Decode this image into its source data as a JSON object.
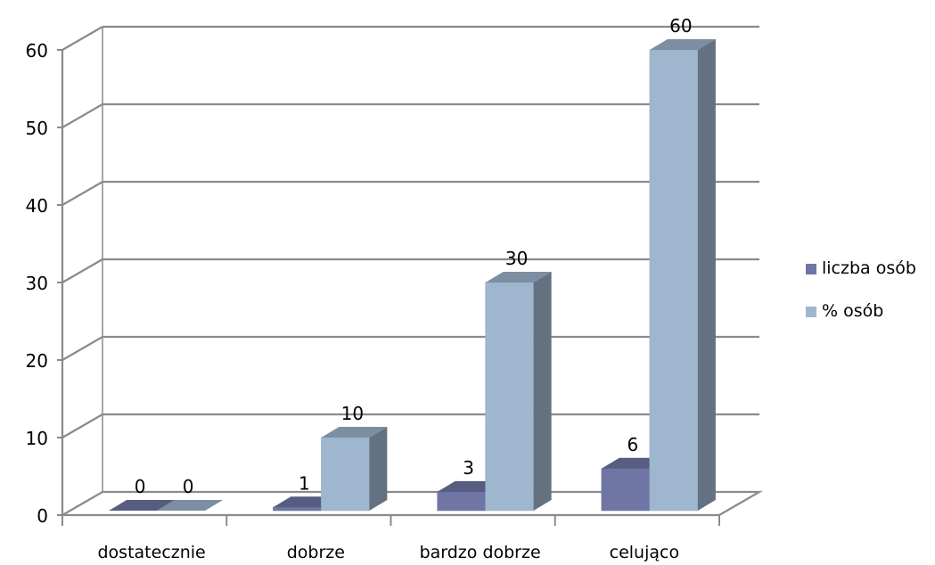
{
  "chart_data": {
    "type": "bar",
    "categories": [
      "dostatecznie",
      "dobrze",
      "bardzo dobrze",
      "celująco"
    ],
    "series": [
      {
        "name": "liczba osób",
        "values": [
          0,
          1,
          3,
          6
        ],
        "color": "#6f76a6"
      },
      {
        "name": "% osób",
        "values": [
          0,
          10,
          30,
          60
        ],
        "color": "#9fb6cf"
      }
    ],
    "ylim": [
      0,
      60
    ],
    "yticks": [
      0,
      10,
      20,
      30,
      40,
      50,
      60
    ],
    "grid": true,
    "legend_position": "right",
    "style": "3d-clustered-column"
  }
}
